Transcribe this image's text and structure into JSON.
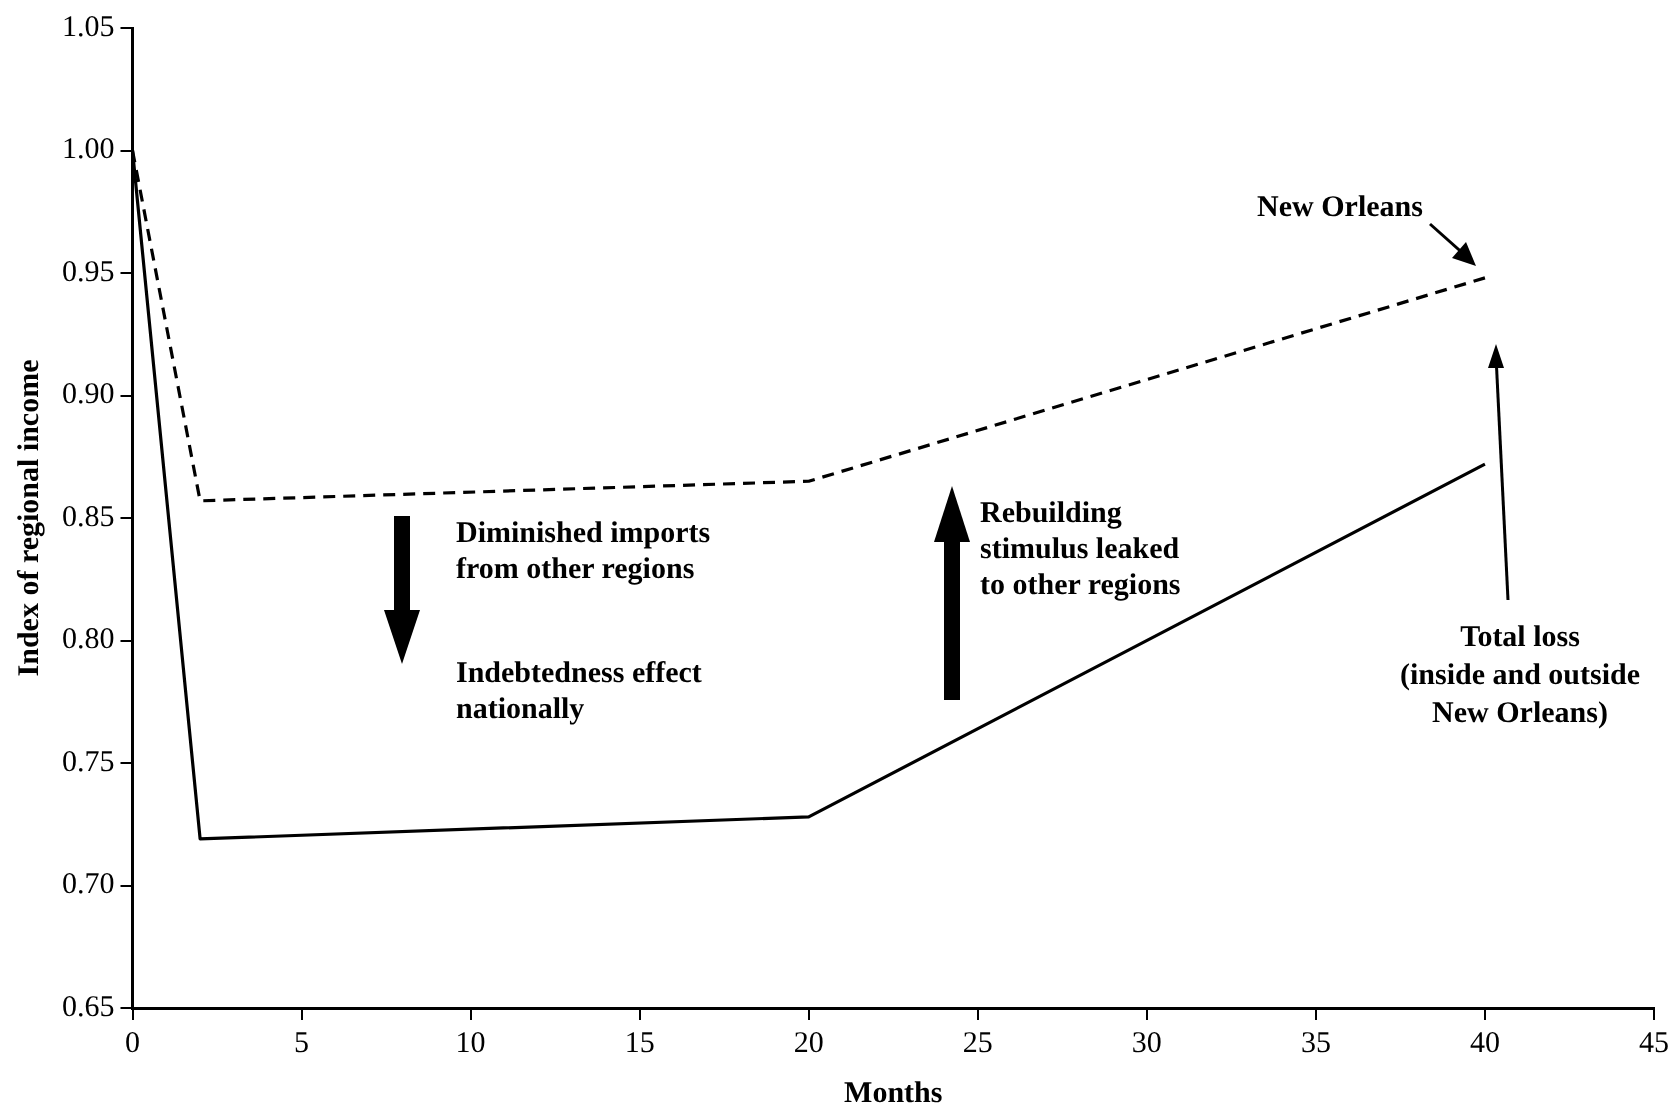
{
  "chart_data": {
    "type": "line",
    "xlabel": "Months",
    "ylabel": "Index of regional income",
    "xlim": [
      0,
      45
    ],
    "xticks": [
      0,
      5,
      10,
      15,
      20,
      25,
      30,
      35,
      40,
      45
    ],
    "ylim": [
      0.65,
      1.05
    ],
    "yticks": [
      {
        "value": 0.65,
        "label": "0.65"
      },
      {
        "value": 0.7,
        "label": "0.70"
      },
      {
        "value": 0.75,
        "label": "0.75"
      },
      {
        "value": 0.8,
        "label": "0.80"
      },
      {
        "value": 0.85,
        "label": "0.85"
      },
      {
        "value": 0.9,
        "label": "0.90"
      },
      {
        "value": 0.95,
        "label": "0.95"
      },
      {
        "value": 1.0,
        "label": "1.00"
      },
      {
        "value": 1.05,
        "label": "1.05"
      }
    ],
    "grid": false,
    "legend": false,
    "marker": "none",
    "series": [
      {
        "name": "New Orleans",
        "color": "#000000",
        "line_style": "dashed",
        "x": [
          0,
          2,
          20,
          40
        ],
        "values": [
          1.0,
          0.857,
          0.865,
          0.948
        ]
      },
      {
        "name": "Total loss\n(inside and outside\nNew Orleans)",
        "color": "#000000",
        "line_style": "solid",
        "x": [
          0,
          2,
          20,
          40
        ],
        "values": [
          1.0,
          0.719,
          0.728,
          0.872
        ]
      }
    ],
    "annotations": [
      "Diminished imports\nfrom other regions",
      "Indebtedness effect\nnationally",
      "Rebuilding\nstimulus leaked\nto other regions"
    ]
  }
}
